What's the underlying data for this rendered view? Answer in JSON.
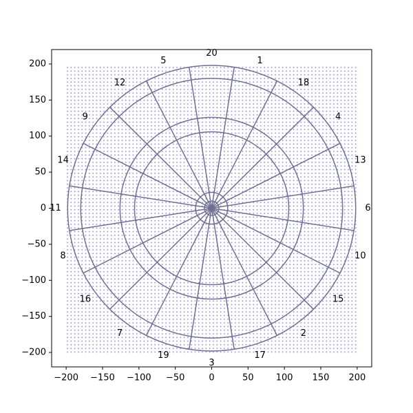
{
  "chart_data": {
    "type": "dartboard",
    "categories": [
      20,
      1,
      18,
      4,
      13,
      6,
      10,
      15,
      2,
      17,
      3,
      19,
      7,
      16,
      8,
      11,
      14,
      9,
      12,
      5
    ],
    "rings": [
      10,
      22,
      106,
      126,
      180,
      198
    ],
    "color": "#707090",
    "xlim": [
      -220,
      220
    ],
    "ylim": [
      -220,
      220
    ],
    "xticks": [
      {
        "value": -200,
        "label": "−200"
      },
      {
        "value": -150,
        "label": "−150"
      },
      {
        "value": -100,
        "label": "−100"
      },
      {
        "value": -50,
        "label": "−50"
      },
      0,
      50,
      100,
      150,
      200
    ],
    "yticks": [
      {
        "value": -200,
        "label": "−200"
      },
      {
        "value": -150,
        "label": "−150"
      },
      {
        "value": -100,
        "label": "−100"
      },
      {
        "value": -50,
        "label": "−50"
      },
      0,
      50,
      100,
      150,
      200
    ]
  }
}
